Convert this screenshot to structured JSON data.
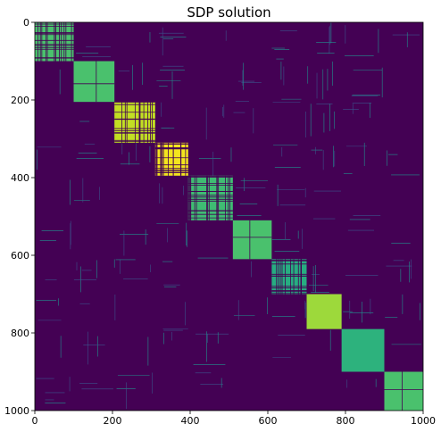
{
  "chart_data": {
    "type": "heatmap",
    "title": "SDP solution",
    "xlabel": "",
    "ylabel": "",
    "xlim": [
      0,
      1000
    ],
    "ylim": [
      1000,
      0
    ],
    "x_ticks": [
      0,
      200,
      400,
      600,
      800,
      1000
    ],
    "y_ticks": [
      0,
      200,
      400,
      600,
      800,
      1000
    ],
    "matrix_size": 1000,
    "grid": false,
    "colormap": "viridis",
    "background_value_color": "#440154",
    "blocks": [
      {
        "start": 0,
        "end": 100,
        "value": 0.62,
        "color": "#4ac16d",
        "pattern": "dense-grid"
      },
      {
        "start": 100,
        "end": 205,
        "value": 0.65,
        "color": "#4ac16d",
        "pattern": "solid-cross"
      },
      {
        "start": 205,
        "end": 310,
        "value": 0.92,
        "color": "#c2df23",
        "pattern": "dense-grid"
      },
      {
        "start": 310,
        "end": 395,
        "value": 0.98,
        "color": "#f3e51e",
        "pattern": "dense-grid"
      },
      {
        "start": 395,
        "end": 510,
        "value": 0.6,
        "color": "#3fbc73",
        "pattern": "dense-grid"
      },
      {
        "start": 510,
        "end": 610,
        "value": 0.64,
        "color": "#4ac16d",
        "pattern": "solid-cross"
      },
      {
        "start": 610,
        "end": 700,
        "value": 0.55,
        "color": "#27ad81",
        "pattern": "dense-grid"
      },
      {
        "start": 700,
        "end": 790,
        "value": 0.8,
        "color": "#9dd93b",
        "pattern": "solid"
      },
      {
        "start": 790,
        "end": 900,
        "value": 0.57,
        "color": "#2db27d",
        "pattern": "solid"
      },
      {
        "start": 900,
        "end": 1000,
        "value": 0.62,
        "color": "#4ac16d",
        "pattern": "solid-cross"
      }
    ],
    "off_diagonal_color": "#3b528b"
  }
}
